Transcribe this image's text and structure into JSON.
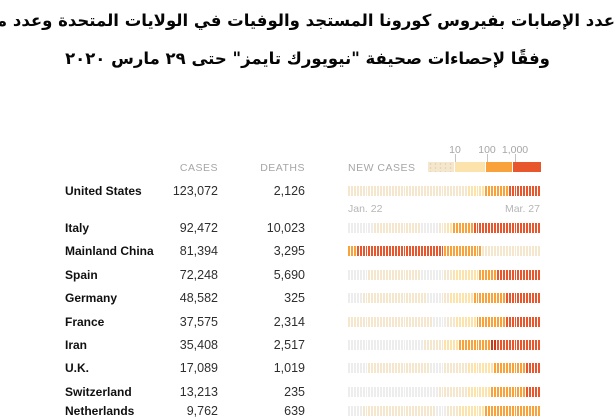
{
  "title": {
    "line1": "عدد الإصابات بفيروس كورونا المستجد والوفيات في الولايات المتحدة وعدد من الدول الأخرى",
    "line2": "وفقًا لإحصاءات صحيفة \"نيويورك تايمز\" حتى ٢٩ مارس ٢٠٢٠"
  },
  "table": {
    "columns": {
      "cases": "CASES",
      "deaths": "DEATHS",
      "new_cases": "NEW CASES"
    },
    "timeline": {
      "start": "Jan. 22",
      "end": "Mar. 27"
    }
  },
  "palette": {
    "gray": "#ededed",
    "tan": "#f5e7cd",
    "yellow": "#fce3ab",
    "orange": "#f9a23c",
    "red": "#e8562d",
    "darkred": "#c93a1d"
  },
  "chart_data": {
    "type": "heatmap",
    "title": "عدد الإصابات بفيروس كورونا المستجد والوفيات في الولايات المتحدة وعدد من الدول الأخرى",
    "subtitle": "وفقًا لإحصاءات صحيفة \"نيويورك تايمز\" حتى ٢٩ مارس ٢٠٢٠",
    "columns": [
      "CASES",
      "DEATHS",
      "NEW CASES"
    ],
    "x_range": [
      "Jan. 22",
      "Mar. 27"
    ],
    "legend": {
      "scale_ticks": [
        "10",
        "100",
        "1,000"
      ],
      "segment_colors": [
        "tan",
        "yellow",
        "orange",
        "red"
      ]
    },
    "rows": [
      {
        "country": "United States",
        "cases": "123,072",
        "deaths": "2,126",
        "strip": [
          [
            "tan",
            41
          ],
          [
            "yellow",
            6
          ],
          [
            "orange",
            8
          ],
          [
            "red",
            11
          ]
        ]
      },
      {
        "country": "Italy",
        "cases": "92,472",
        "deaths": "10,023",
        "strip": [
          [
            "gray",
            9
          ],
          [
            "tan",
            16
          ],
          [
            "gray",
            6
          ],
          [
            "tan",
            3
          ],
          [
            "yellow",
            2
          ],
          [
            "orange",
            7
          ],
          [
            "red",
            23
          ]
        ]
      },
      {
        "country": "Mainland China",
        "cases": "81,394",
        "deaths": "3,295",
        "strip": [
          [
            "orange",
            3
          ],
          [
            "red",
            30
          ],
          [
            "orange",
            13
          ],
          [
            "tan",
            20
          ]
        ]
      },
      {
        "country": "Spain",
        "cases": "72,248",
        "deaths": "5,690",
        "strip": [
          [
            "gray",
            7
          ],
          [
            "tan",
            18
          ],
          [
            "gray",
            8
          ],
          [
            "tan",
            3
          ],
          [
            "yellow",
            9
          ],
          [
            "orange",
            6
          ],
          [
            "red",
            15
          ]
        ]
      },
      {
        "country": "Germany",
        "cases": "48,582",
        "deaths": "325",
        "strip": [
          [
            "gray",
            5
          ],
          [
            "tan",
            22
          ],
          [
            "gray",
            5
          ],
          [
            "tan",
            3
          ],
          [
            "yellow",
            8
          ],
          [
            "orange",
            11
          ],
          [
            "red",
            12
          ]
        ]
      },
      {
        "country": "France",
        "cases": "37,575",
        "deaths": "2,314",
        "strip": [
          [
            "tan",
            29
          ],
          [
            "gray",
            5
          ],
          [
            "tan",
            3
          ],
          [
            "yellow",
            7
          ],
          [
            "orange",
            10
          ],
          [
            "red",
            12
          ]
        ]
      },
      {
        "country": "Iran",
        "cases": "35,408",
        "deaths": "2,517",
        "strip": [
          [
            "gray",
            26
          ],
          [
            "tan",
            7
          ],
          [
            "yellow",
            5
          ],
          [
            "orange",
            11
          ],
          [
            "darkred",
            2
          ],
          [
            "red",
            15
          ]
        ]
      },
      {
        "country": "U.K.",
        "cases": "17,089",
        "deaths": "1,019",
        "strip": [
          [
            "gray",
            7
          ],
          [
            "tan",
            21
          ],
          [
            "gray",
            5
          ],
          [
            "tan",
            8
          ],
          [
            "yellow",
            9
          ],
          [
            "orange",
            11
          ],
          [
            "red",
            5
          ]
        ]
      },
      {
        "country": "Switzerland",
        "cases": "13,213",
        "deaths": "235",
        "strip": [
          [
            "gray",
            31
          ],
          [
            "tan",
            10
          ],
          [
            "yellow",
            8
          ],
          [
            "orange",
            12
          ],
          [
            "red",
            5
          ]
        ]
      },
      {
        "country": "Netherlands",
        "cases": "9,762",
        "deaths": "639",
        "partial": true,
        "strip": [
          [
            "gray",
            5
          ],
          [
            "tan",
            25
          ],
          [
            "gray",
            4
          ],
          [
            "tan",
            4
          ],
          [
            "yellow",
            9
          ],
          [
            "orange",
            19
          ]
        ]
      }
    ]
  }
}
